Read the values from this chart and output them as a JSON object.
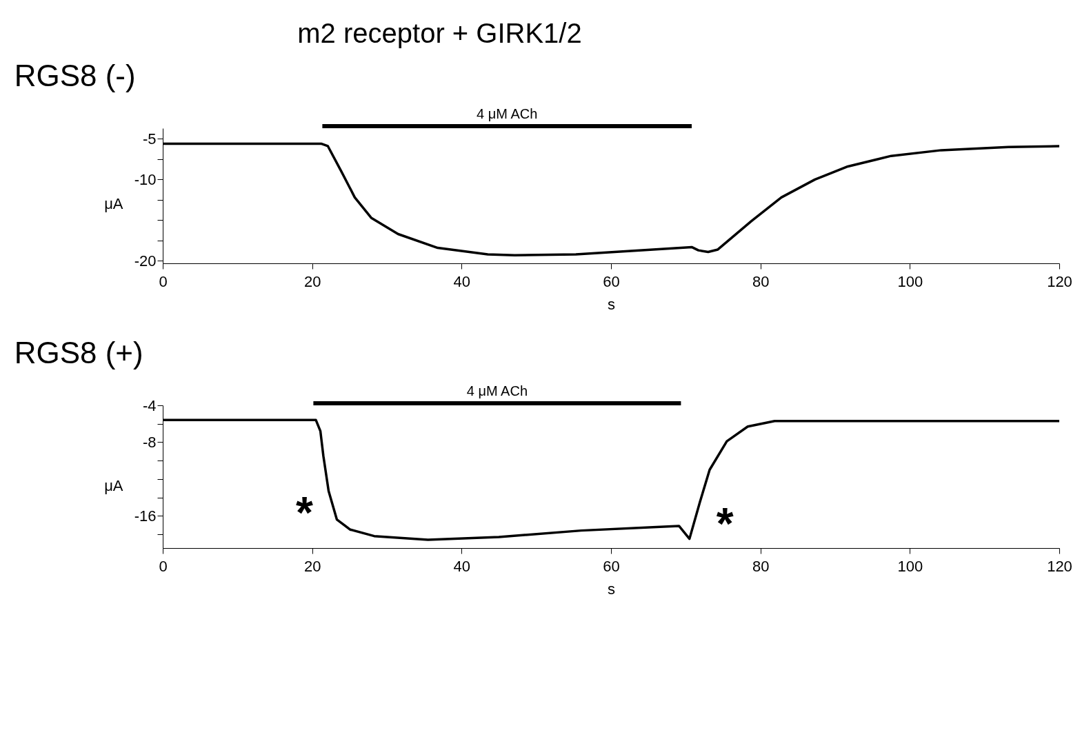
{
  "chart_data": [
    {
      "type": "line",
      "title": "m2 receptor + GIRK1/2",
      "subtitle": "RGS8 (-)",
      "xlabel": "s",
      "ylabel": "μA",
      "grid": false,
      "marker": "none",
      "line_style": "solid",
      "xlim": [
        0,
        120
      ],
      "xticks": [
        0,
        20,
        40,
        60,
        80,
        100,
        120
      ],
      "ylim": [
        -20.3,
        -3.7
      ],
      "yticks": [
        -5,
        {
          "value": -7.5,
          "label": null
        },
        -10,
        {
          "value": -12.5,
          "label": null
        },
        {
          "value": -15,
          "label": null
        },
        {
          "value": -17.5,
          "label": null
        },
        -20
      ],
      "annotations": [
        "4 μM ACh"
      ],
      "series": [
        {
          "color": "#000000",
          "x": [
            0,
            10,
            21.2,
            22.1,
            23.9,
            25.7,
            27.9,
            31.5,
            36.8,
            43.5,
            47.1,
            55.3,
            70.8,
            71.7,
            73.0,
            74.3,
            78.8,
            82.8,
            87.3,
            91.7,
            97.5,
            104.2,
            113.2,
            120
          ],
          "values": [
            -5.6,
            -5.6,
            -5.6,
            -5.9,
            -9.0,
            -12.2,
            -14.7,
            -16.7,
            -18.4,
            -19.2,
            -19.3,
            -19.2,
            -18.3,
            -18.7,
            -18.9,
            -18.6,
            -15.1,
            -12.2,
            -10,
            -8.4,
            -7.1,
            -6.4,
            -6.0,
            -5.9
          ]
        }
      ]
    },
    {
      "type": "line",
      "subtitle": "RGS8 (+)",
      "xlabel": "s",
      "ylabel": "μA",
      "grid": false,
      "marker": "none",
      "line_style": "solid",
      "xlim": [
        0,
        120
      ],
      "xticks": [
        0,
        20,
        40,
        60,
        80,
        100,
        120
      ],
      "ylim": [
        -19.5,
        -4
      ],
      "yticks": [
        -4,
        {
          "value": -6,
          "label": null
        },
        -8,
        {
          "value": -10,
          "label": null
        },
        {
          "value": -12,
          "label": null
        },
        {
          "value": -14,
          "label": null
        },
        -16,
        {
          "value": -18,
          "label": null
        }
      ],
      "annotations": [
        "4 μM ACh",
        "*",
        "*"
      ],
      "series": [
        {
          "color": "#000000",
          "x": [
            0,
            10,
            20.5,
            21.1,
            21.5,
            22.2,
            23.3,
            25.1,
            28.3,
            35.5,
            45,
            56,
            69.1,
            70.5,
            71.9,
            73.2,
            75.5,
            78.3,
            81.9,
            100,
            120
          ],
          "values": [
            -5.6,
            -5.6,
            -5.6,
            -6.8,
            -9.5,
            -13.3,
            -16.4,
            -17.5,
            -18.2,
            -18.6,
            -18.3,
            -17.6,
            -17.1,
            -18.5,
            -14.5,
            -11,
            -7.9,
            -6.3,
            -5.7,
            -5.7,
            -5.7
          ]
        }
      ]
    }
  ]
}
